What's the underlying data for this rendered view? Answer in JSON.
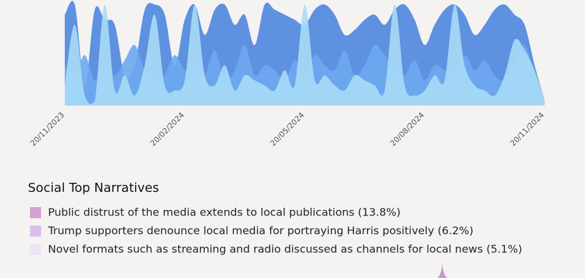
{
  "chart_data": {
    "type": "area",
    "categories": [
      "20/11/2023",
      null,
      null,
      null,
      null,
      null,
      null,
      null,
      null,
      null,
      null,
      null,
      "20/02/2024",
      null,
      null,
      null,
      null,
      null,
      null,
      null,
      null,
      null,
      null,
      null,
      "20/05/2024",
      null,
      null,
      null,
      null,
      null,
      null,
      null,
      null,
      null,
      null,
      null,
      "20/08/2024",
      null,
      null,
      null,
      null,
      null,
      null,
      null,
      null,
      null,
      null,
      null,
      "20/11/2024"
    ],
    "ylim": [
      0,
      110
    ],
    "series": [
      {
        "color": "#4f86df",
        "values": [
          90,
          100,
          20,
          95,
          85,
          80,
          30,
          40,
          95,
          100,
          90,
          40,
          85,
          100,
          70,
          95,
          100,
          80,
          90,
          60,
          100,
          95,
          90,
          85,
          80,
          95,
          100,
          90,
          70,
          75,
          85,
          90,
          80,
          95,
          100,
          85,
          60,
          80,
          95,
          100,
          90,
          70,
          80,
          95,
          100,
          90,
          80,
          40,
          5
        ]
      },
      {
        "color": "#6ea9ef",
        "values": [
          40,
          30,
          50,
          25,
          40,
          30,
          45,
          60,
          35,
          25,
          30,
          50,
          35,
          40,
          30,
          55,
          25,
          35,
          60,
          30,
          40,
          35,
          25,
          45,
          30,
          50,
          40,
          35,
          55,
          30,
          40,
          60,
          50,
          35,
          30,
          45,
          25,
          40,
          35,
          30,
          50,
          35,
          45,
          30,
          25,
          40,
          60,
          30,
          5
        ]
      },
      {
        "color": "#a9dcf6",
        "values": [
          20,
          80,
          10,
          5,
          100,
          15,
          30,
          10,
          40,
          90,
          20,
          15,
          25,
          100,
          30,
          20,
          40,
          15,
          30,
          25,
          20,
          15,
          35,
          20,
          100,
          25,
          30,
          20,
          15,
          30,
          25,
          20,
          15,
          100,
          20,
          10,
          15,
          30,
          25,
          100,
          40,
          20,
          15,
          10,
          30,
          65,
          55,
          35,
          5
        ]
      }
    ]
  },
  "narratives": {
    "title": "Social Top Narratives",
    "items": [
      {
        "label": "Public distrust of the media extends to local publications (13.8%)",
        "color": "#d4a2d2"
      },
      {
        "label": "Trump supporters denounce local media for portraying Harris positively (6.2%)",
        "color": "#d9c0ea"
      },
      {
        "label": "Novel formats such as streaming and radio discussed as channels for local news (5.1%)",
        "color": "#ece5f8"
      }
    ]
  }
}
